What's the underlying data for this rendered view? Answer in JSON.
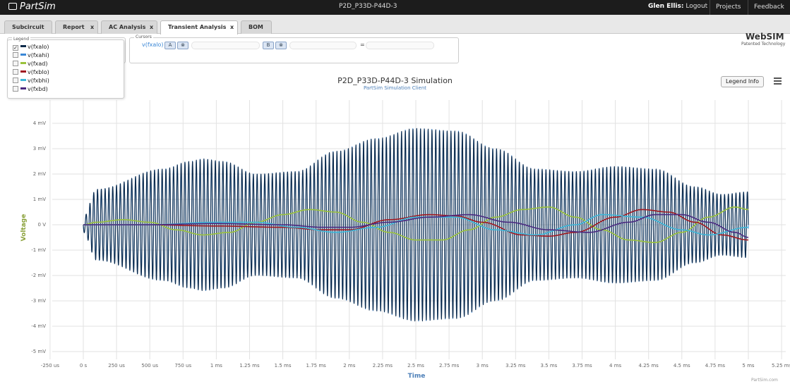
{
  "app": {
    "name": "PartSim",
    "doc_title": "P2D_P33D-P44D-3",
    "user_name": "Glen Ellis:",
    "logout": "Logout",
    "projects": "Projects",
    "feedback": "Feedback"
  },
  "brand": {
    "name": "WebSIM",
    "tagline": "Patented Technology"
  },
  "tabs": [
    {
      "label": "Subcircuit",
      "closable": false
    },
    {
      "label": "Report",
      "closable": true
    },
    {
      "label": "AC Analysis",
      "closable": true
    },
    {
      "label": "Transient Analysis",
      "closable": true,
      "active": true
    },
    {
      "label": "BOM",
      "closable": false
    }
  ],
  "close_glyph": "x",
  "legend_panel": {
    "title": "Legend",
    "items": [
      {
        "label": "v(fxalo)",
        "color": "#0d2a4a",
        "checked": true
      },
      {
        "label": "v(fxahi)",
        "color": "#3a87d6",
        "checked": false
      },
      {
        "label": "v(fxad)",
        "color": "#9ac23c",
        "checked": false
      },
      {
        "label": "v(fxblo)",
        "color": "#a01820",
        "checked": false
      },
      {
        "label": "v(fxbhi)",
        "color": "#3cb6d8",
        "checked": false
      },
      {
        "label": "v(fxbd)",
        "color": "#4a2a80",
        "checked": false
      }
    ]
  },
  "cursors_panel": {
    "title": "Cursors",
    "trace": "v(fxalo)",
    "a_label": "A",
    "b_label": "B",
    "clear_icon": "⊗",
    "equals": "="
  },
  "chart_controls": {
    "legend_info_label": "Legend Info",
    "menu_icon": "hamburger-icon"
  },
  "chart_data": {
    "type": "line",
    "title": "P2D_P33D-P44D-3 Simulation",
    "subtitle": "PartSim Simulation Client",
    "xlabel": "Time",
    "ylabel": "Voltage",
    "x_unit": "s",
    "y_unit": "V",
    "xlim": [
      -0.00025,
      0.00525
    ],
    "ylim": [
      -0.0052,
      0.0045
    ],
    "xticks": [
      {
        "v": -0.00025,
        "label": "-250 us"
      },
      {
        "v": 0,
        "label": "0 s"
      },
      {
        "v": 0.00025,
        "label": "250 us"
      },
      {
        "v": 0.0005,
        "label": "500 us"
      },
      {
        "v": 0.00075,
        "label": "750 us"
      },
      {
        "v": 0.001,
        "label": "1 ms"
      },
      {
        "v": 0.00125,
        "label": "1.25 ms"
      },
      {
        "v": 0.0015,
        "label": "1.5 ms"
      },
      {
        "v": 0.00175,
        "label": "1.75 ms"
      },
      {
        "v": 0.002,
        "label": "2 ms"
      },
      {
        "v": 0.00225,
        "label": "2.25 ms"
      },
      {
        "v": 0.0025,
        "label": "2.5 ms"
      },
      {
        "v": 0.00275,
        "label": "2.75 ms"
      },
      {
        "v": 0.003,
        "label": "3 ms"
      },
      {
        "v": 0.00325,
        "label": "3.25 ms"
      },
      {
        "v": 0.0035,
        "label": "3.5 ms"
      },
      {
        "v": 0.00375,
        "label": "3.75 ms"
      },
      {
        "v": 0.004,
        "label": "4 ms"
      },
      {
        "v": 0.00425,
        "label": "4.25 ms"
      },
      {
        "v": 0.0045,
        "label": "4.5 ms"
      },
      {
        "v": 0.00475,
        "label": "4.75 ms"
      },
      {
        "v": 0.005,
        "label": "5 ms"
      },
      {
        "v": 0.00525,
        "label": "5.25 ms"
      }
    ],
    "yticks": [
      {
        "v": 0.004,
        "label": "4 mV"
      },
      {
        "v": 0.003,
        "label": "3 mV"
      },
      {
        "v": 0.002,
        "label": "2 mV"
      },
      {
        "v": 0.001,
        "label": "1 mV"
      },
      {
        "v": 0,
        "label": "0 V"
      },
      {
        "v": -0.001,
        "label": "-1 mV"
      },
      {
        "v": -0.002,
        "label": "-2 mV"
      },
      {
        "v": -0.003,
        "label": "-3 mV"
      },
      {
        "v": -0.004,
        "label": "-4 mV"
      },
      {
        "v": -0.005,
        "label": "-5 mV"
      }
    ],
    "grid": true,
    "legend": "none",
    "series": [
      {
        "name": "v(fxahi)",
        "color": "#3a87d6",
        "kind": "oscillation",
        "cycles": 175,
        "envelope": {
          "t": [
            0,
            0.0001,
            0.0006,
            0.0008,
            0.0009,
            0.00105,
            0.0013,
            0.0016,
            0.0019,
            0.0022,
            0.0025,
            0.0028,
            0.0031,
            0.0034,
            0.0037,
            0.004,
            0.0043,
            0.0046,
            0.0048,
            0.005
          ],
          "v": [
            0.0003,
            0.0014,
            0.0022,
            0.0025,
            0.0026,
            0.0025,
            0.002,
            0.0021,
            0.0029,
            0.0034,
            0.0038,
            0.0037,
            0.003,
            0.0022,
            0.0021,
            0.0023,
            0.0022,
            0.0015,
            0.0012,
            0.0013
          ]
        }
      },
      {
        "name": "v(fxalo)",
        "color": "#0d2a4a",
        "kind": "oscillation",
        "cycles": 175,
        "envelope": {
          "t": [
            0,
            0.0001,
            0.0006,
            0.0008,
            0.0009,
            0.00105,
            0.0013,
            0.0016,
            0.0019,
            0.0022,
            0.0025,
            0.0028,
            0.0031,
            0.0034,
            0.0037,
            0.004,
            0.0043,
            0.0046,
            0.0048,
            0.005
          ],
          "v": [
            0.0003,
            0.0014,
            0.0022,
            0.0025,
            0.0026,
            0.0025,
            0.002,
            0.0021,
            0.0029,
            0.0034,
            0.0038,
            0.0037,
            0.003,
            0.0022,
            0.0021,
            0.0023,
            0.0022,
            0.0015,
            0.0012,
            0.0013
          ]
        }
      },
      {
        "name": "v(fxad)",
        "color": "#9ac23c",
        "kind": "smooth",
        "t": [
          0,
          0.0001,
          0.0003,
          0.0005,
          0.0007,
          0.0009,
          0.0011,
          0.0013,
          0.0015,
          0.0017,
          0.0019,
          0.0021,
          0.0023,
          0.0025,
          0.0027,
          0.0029,
          0.0031,
          0.0033,
          0.0035,
          0.0037,
          0.0039,
          0.0041,
          0.0043,
          0.0045,
          0.0047,
          0.0049,
          0.005
        ],
        "v": [
          0,
          0.0001,
          0.0002,
          0.0001,
          -0.0002,
          -0.0004,
          -0.0003,
          0.0001,
          0.0004,
          0.0006,
          0.0005,
          0.0001,
          -0.0003,
          -0.0006,
          -0.0006,
          -0.0002,
          0.0003,
          0.0006,
          0.0007,
          0.0003,
          -0.0002,
          -0.0006,
          -0.0007,
          -0.0003,
          0.0003,
          0.0007,
          0.0006
        ]
      },
      {
        "name": "v(fxblo)",
        "color": "#a01820",
        "kind": "smooth",
        "t": [
          0,
          0.0005,
          0.001,
          0.0015,
          0.0018,
          0.002,
          0.0023,
          0.0026,
          0.0028,
          0.003,
          0.0033,
          0.0035,
          0.0037,
          0.004,
          0.0042,
          0.0044,
          0.0046,
          0.0048,
          0.005
        ],
        "v": [
          0,
          0,
          -5e-05,
          -0.0001,
          -0.0002,
          -0.0002,
          0.0002,
          0.0004,
          0.00035,
          0.0001,
          -0.0004,
          -0.00045,
          -0.0003,
          0.0003,
          0.0006,
          0.0005,
          0.0001,
          -0.0004,
          -0.0006
        ]
      },
      {
        "name": "v(fxbhi)",
        "color": "#3cb6d8",
        "kind": "smooth",
        "t": [
          0,
          0.0005,
          0.001,
          0.0013,
          0.0016,
          0.0019,
          0.0022,
          0.0025,
          0.0028,
          0.0031,
          0.0034,
          0.0037,
          0.0039,
          0.0042,
          0.0045,
          0.0047,
          0.005
        ],
        "v": [
          0,
          0,
          0.0001,
          0.0001,
          -0.0001,
          -0.0003,
          -0.0001,
          0.0003,
          0.0003,
          -0.0002,
          -0.0004,
          0,
          0.0004,
          0.0003,
          -0.0002,
          -0.0004,
          -0.0001
        ]
      },
      {
        "name": "v(fxbd)",
        "color": "#4a2a80",
        "kind": "smooth",
        "t": [
          0,
          0.0005,
          0.001,
          0.0015,
          0.0018,
          0.002,
          0.0023,
          0.0026,
          0.0029,
          0.0032,
          0.0035,
          0.0038,
          0.0041,
          0.0043,
          0.0045,
          0.0047,
          0.0049,
          0.005
        ],
        "v": [
          0,
          0,
          5e-05,
          0,
          -0.0001,
          -0.0001,
          0.0001,
          0.0003,
          0.0004,
          0.0001,
          -0.0002,
          -0.0003,
          0.0001,
          0.0004,
          0.0004,
          0.0001,
          -0.0003,
          -0.0005
        ]
      }
    ]
  },
  "footer": {
    "credit": "PartSim.com"
  }
}
